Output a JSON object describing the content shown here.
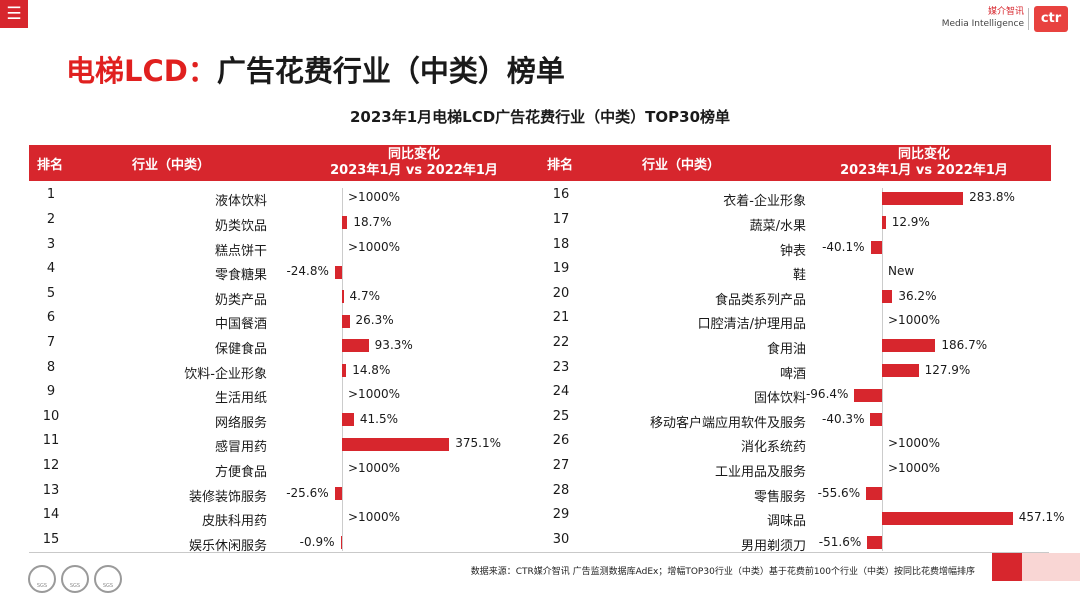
{
  "nav": {
    "menu_icon": "hamburger-icon",
    "menu_glyph": "☰"
  },
  "brand": {
    "cn": "媒介智讯",
    "en": "Media Intelligence",
    "logo": "ctr"
  },
  "page_title_red": "电梯LCD：",
  "page_title_black": "广告花费行业（中类）榜单",
  "headers": {
    "rank": "排名",
    "industry": "行业（中类）",
    "change_line1": "同比变化",
    "change_line2": "2023年1月 vs 2022年1月"
  },
  "source": "数据来源：CTR媒介智讯 广告监测数据库AdEx；增幅TOP30行业（中类）基于花费前100个行业（中类）按同比花费增幅排序",
  "cert_label": "SGS",
  "chart_data": {
    "type": "bar",
    "title": "2023年1月电梯LCD广告花费行业（中类）TOP30榜单",
    "xlabel": "同比变化 2023年1月 vs 2022年1月",
    "ylabel": "行业（中类）",
    "unit": "%",
    "rows": [
      {
        "rank": "1",
        "industry": "液体饮料",
        "label": ">1000%",
        "value": null
      },
      {
        "rank": "2",
        "industry": "奶类饮品",
        "label": "18.7%",
        "value": 18.7
      },
      {
        "rank": "3",
        "industry": "糕点饼干",
        "label": ">1000%",
        "value": null
      },
      {
        "rank": "4",
        "industry": "零食糖果",
        "label": "-24.8%",
        "value": -24.8
      },
      {
        "rank": "5",
        "industry": "奶类产品",
        "label": "4.7%",
        "value": 4.7
      },
      {
        "rank": "6",
        "industry": "中国餐酒",
        "label": "26.3%",
        "value": 26.3
      },
      {
        "rank": "7",
        "industry": "保健食品",
        "label": "93.3%",
        "value": 93.3
      },
      {
        "rank": "8",
        "industry": "饮料-企业形象",
        "label": "14.8%",
        "value": 14.8
      },
      {
        "rank": "9",
        "industry": "生活用纸",
        "label": ">1000%",
        "value": null
      },
      {
        "rank": "10",
        "industry": "网络服务",
        "label": "41.5%",
        "value": 41.5
      },
      {
        "rank": "11",
        "industry": "感冒用药",
        "label": "375.1%",
        "value": 375.1
      },
      {
        "rank": "12",
        "industry": "方便食品",
        "label": ">1000%",
        "value": null
      },
      {
        "rank": "13",
        "industry": "装修装饰服务",
        "label": "-25.6%",
        "value": -25.6
      },
      {
        "rank": "14",
        "industry": "皮肤科用药",
        "label": ">1000%",
        "value": null
      },
      {
        "rank": "15",
        "industry": "娱乐休闲服务",
        "label": "-0.9%",
        "value": -0.9
      },
      {
        "rank": "16",
        "industry": "衣着-企业形象",
        "label": "283.8%",
        "value": 283.8
      },
      {
        "rank": "17",
        "industry": "蔬菜/水果",
        "label": "12.9%",
        "value": 12.9
      },
      {
        "rank": "18",
        "industry": "钟表",
        "label": "-40.1%",
        "value": -40.1
      },
      {
        "rank": "19",
        "industry": "鞋",
        "label": "New",
        "value": null
      },
      {
        "rank": "20",
        "industry": "食品类系列产品",
        "label": "36.2%",
        "value": 36.2
      },
      {
        "rank": "21",
        "industry": "口腔清洁/护理用品",
        "label": ">1000%",
        "value": null
      },
      {
        "rank": "22",
        "industry": "食用油",
        "label": "186.7%",
        "value": 186.7
      },
      {
        "rank": "23",
        "industry": "啤酒",
        "label": "127.9%",
        "value": 127.9
      },
      {
        "rank": "24",
        "industry": "固体饮料",
        "label": "-96.4%",
        "value": -96.4
      },
      {
        "rank": "25",
        "industry": "移动客户端应用软件及服务",
        "label": "-40.3%",
        "value": -40.3
      },
      {
        "rank": "26",
        "industry": "消化系统药",
        "label": ">1000%",
        "value": null
      },
      {
        "rank": "27",
        "industry": "工业用品及服务",
        "label": ">1000%",
        "value": null
      },
      {
        "rank": "28",
        "industry": "零售服务",
        "label": "-55.6%",
        "value": -55.6
      },
      {
        "rank": "29",
        "industry": "调味品",
        "label": "457.1%",
        "value": 457.1
      },
      {
        "rank": "30",
        "industry": "男用剃须刀",
        "label": "-51.6%",
        "value": -51.6
      }
    ]
  }
}
